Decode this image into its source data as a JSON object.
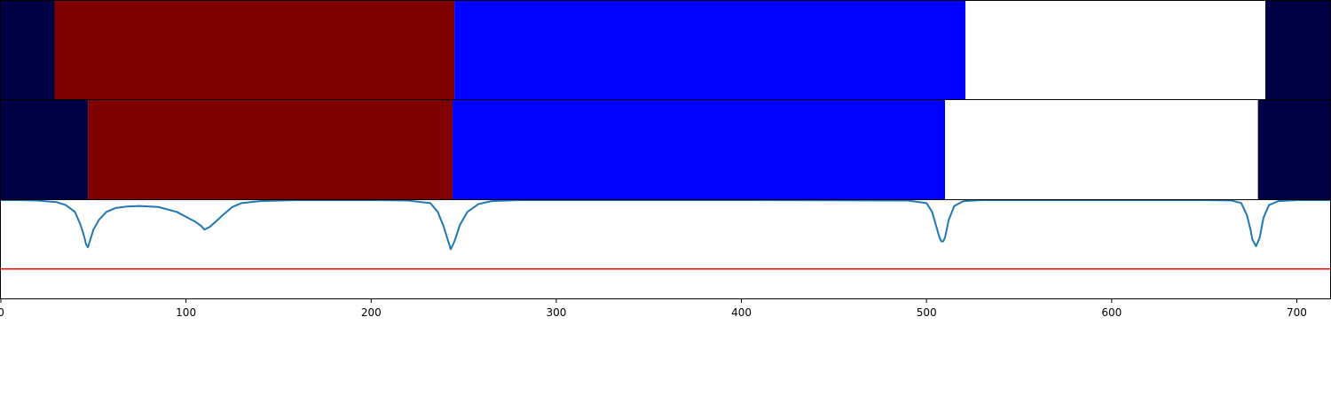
{
  "chart_data": [
    {
      "type": "bar",
      "subtype": "segmentation-strip",
      "row": "top",
      "xlim": [
        0,
        718
      ],
      "segments": [
        {
          "start": 0,
          "end": 29,
          "color": "#000044"
        },
        {
          "start": 29,
          "end": 245,
          "color": "#800000"
        },
        {
          "start": 245,
          "end": 521,
          "color": "#0000ff"
        },
        {
          "start": 521,
          "end": 683,
          "color": "#ffffff"
        },
        {
          "start": 683,
          "end": 718,
          "color": "#000044"
        }
      ]
    },
    {
      "type": "bar",
      "subtype": "segmentation-strip",
      "row": "middle",
      "xlim": [
        0,
        718
      ],
      "segments": [
        {
          "start": 0,
          "end": 47,
          "color": "#000044"
        },
        {
          "start": 47,
          "end": 244,
          "color": "#800000"
        },
        {
          "start": 244,
          "end": 510,
          "color": "#0000ff"
        },
        {
          "start": 510,
          "end": 679,
          "color": "#ffffff"
        },
        {
          "start": 679,
          "end": 718,
          "color": "#000044"
        }
      ]
    },
    {
      "type": "line",
      "row": "bottom",
      "xlim": [
        0,
        718
      ],
      "ylim": [
        0,
        1
      ],
      "xticks": [
        0,
        100,
        200,
        300,
        400,
        500,
        600,
        700
      ],
      "grid": false,
      "line_color": "#1f77b4",
      "threshold": {
        "y": 0.3,
        "color": "#ff0000"
      },
      "series": [
        {
          "x": [
            0,
            10,
            20,
            30,
            35,
            40,
            43,
            45,
            46,
            47,
            48,
            50,
            53,
            57,
            62,
            68,
            75,
            85,
            95,
            100,
            105,
            108,
            110,
            113,
            116,
            120,
            125,
            130,
            140,
            160,
            180,
            200,
            220,
            232,
            236,
            239,
            241,
            243,
            245,
            248,
            252,
            258,
            265,
            280,
            300,
            400,
            490,
            500,
            503,
            505,
            507,
            508,
            509,
            510,
            512,
            515,
            520,
            530,
            550,
            650,
            665,
            670,
            673,
            675,
            676,
            678,
            680,
            682,
            685,
            690,
            700,
            718
          ],
          "y": [
            1.0,
            1.0,
            0.995,
            0.98,
            0.95,
            0.88,
            0.75,
            0.63,
            0.55,
            0.52,
            0.58,
            0.7,
            0.8,
            0.88,
            0.92,
            0.935,
            0.94,
            0.93,
            0.88,
            0.83,
            0.78,
            0.74,
            0.7,
            0.73,
            0.78,
            0.85,
            0.93,
            0.97,
            0.99,
            1.0,
            1.0,
            1.0,
            0.995,
            0.97,
            0.88,
            0.74,
            0.62,
            0.5,
            0.58,
            0.75,
            0.88,
            0.96,
            0.99,
            1.0,
            1.0,
            1.0,
            0.995,
            0.97,
            0.88,
            0.75,
            0.62,
            0.58,
            0.58,
            0.62,
            0.8,
            0.94,
            0.99,
            1.0,
            1.0,
            1.0,
            0.995,
            0.97,
            0.85,
            0.7,
            0.6,
            0.53,
            0.62,
            0.82,
            0.95,
            0.99,
            1.0,
            1.0
          ]
        }
      ]
    }
  ]
}
